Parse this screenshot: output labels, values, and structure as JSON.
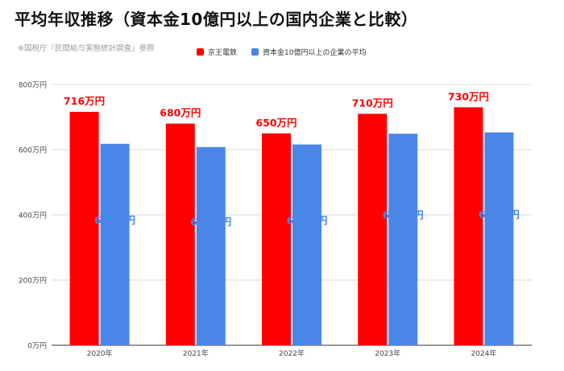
{
  "header": {
    "title": "平均年収推移（資本金10億円以上の国内企業と比較）",
    "source": "※国税庁『民間給与実態統計調査』参照"
  },
  "colors": {
    "keio": "#ff0000",
    "average": "#4a86e8",
    "grid": "#d9d9d9"
  },
  "chart_data": {
    "type": "bar",
    "categories": [
      "2020年",
      "2021年",
      "2022年",
      "2023年",
      "2024年"
    ],
    "series": [
      {
        "name": "京王電鉄",
        "values": [
          716,
          680,
          650,
          710,
          730
        ],
        "labels": [
          "716万円",
          "680万円",
          "650万円",
          "710万円",
          "730万円"
        ]
      },
      {
        "name": "資本金10億円以上の企業の平均",
        "values": [
          618,
          608,
          616,
          649,
          653
        ],
        "labels": [
          "618万円",
          "608万円",
          "616万円",
          "649万円",
          "653万円"
        ]
      }
    ],
    "ylim": [
      0,
      800
    ],
    "yticks": [
      0,
      200,
      400,
      600,
      800
    ],
    "ytick_labels": [
      "0万円",
      "200万円",
      "400万円",
      "600万円",
      "800万円"
    ],
    "grid": true,
    "legend_position": "top"
  }
}
